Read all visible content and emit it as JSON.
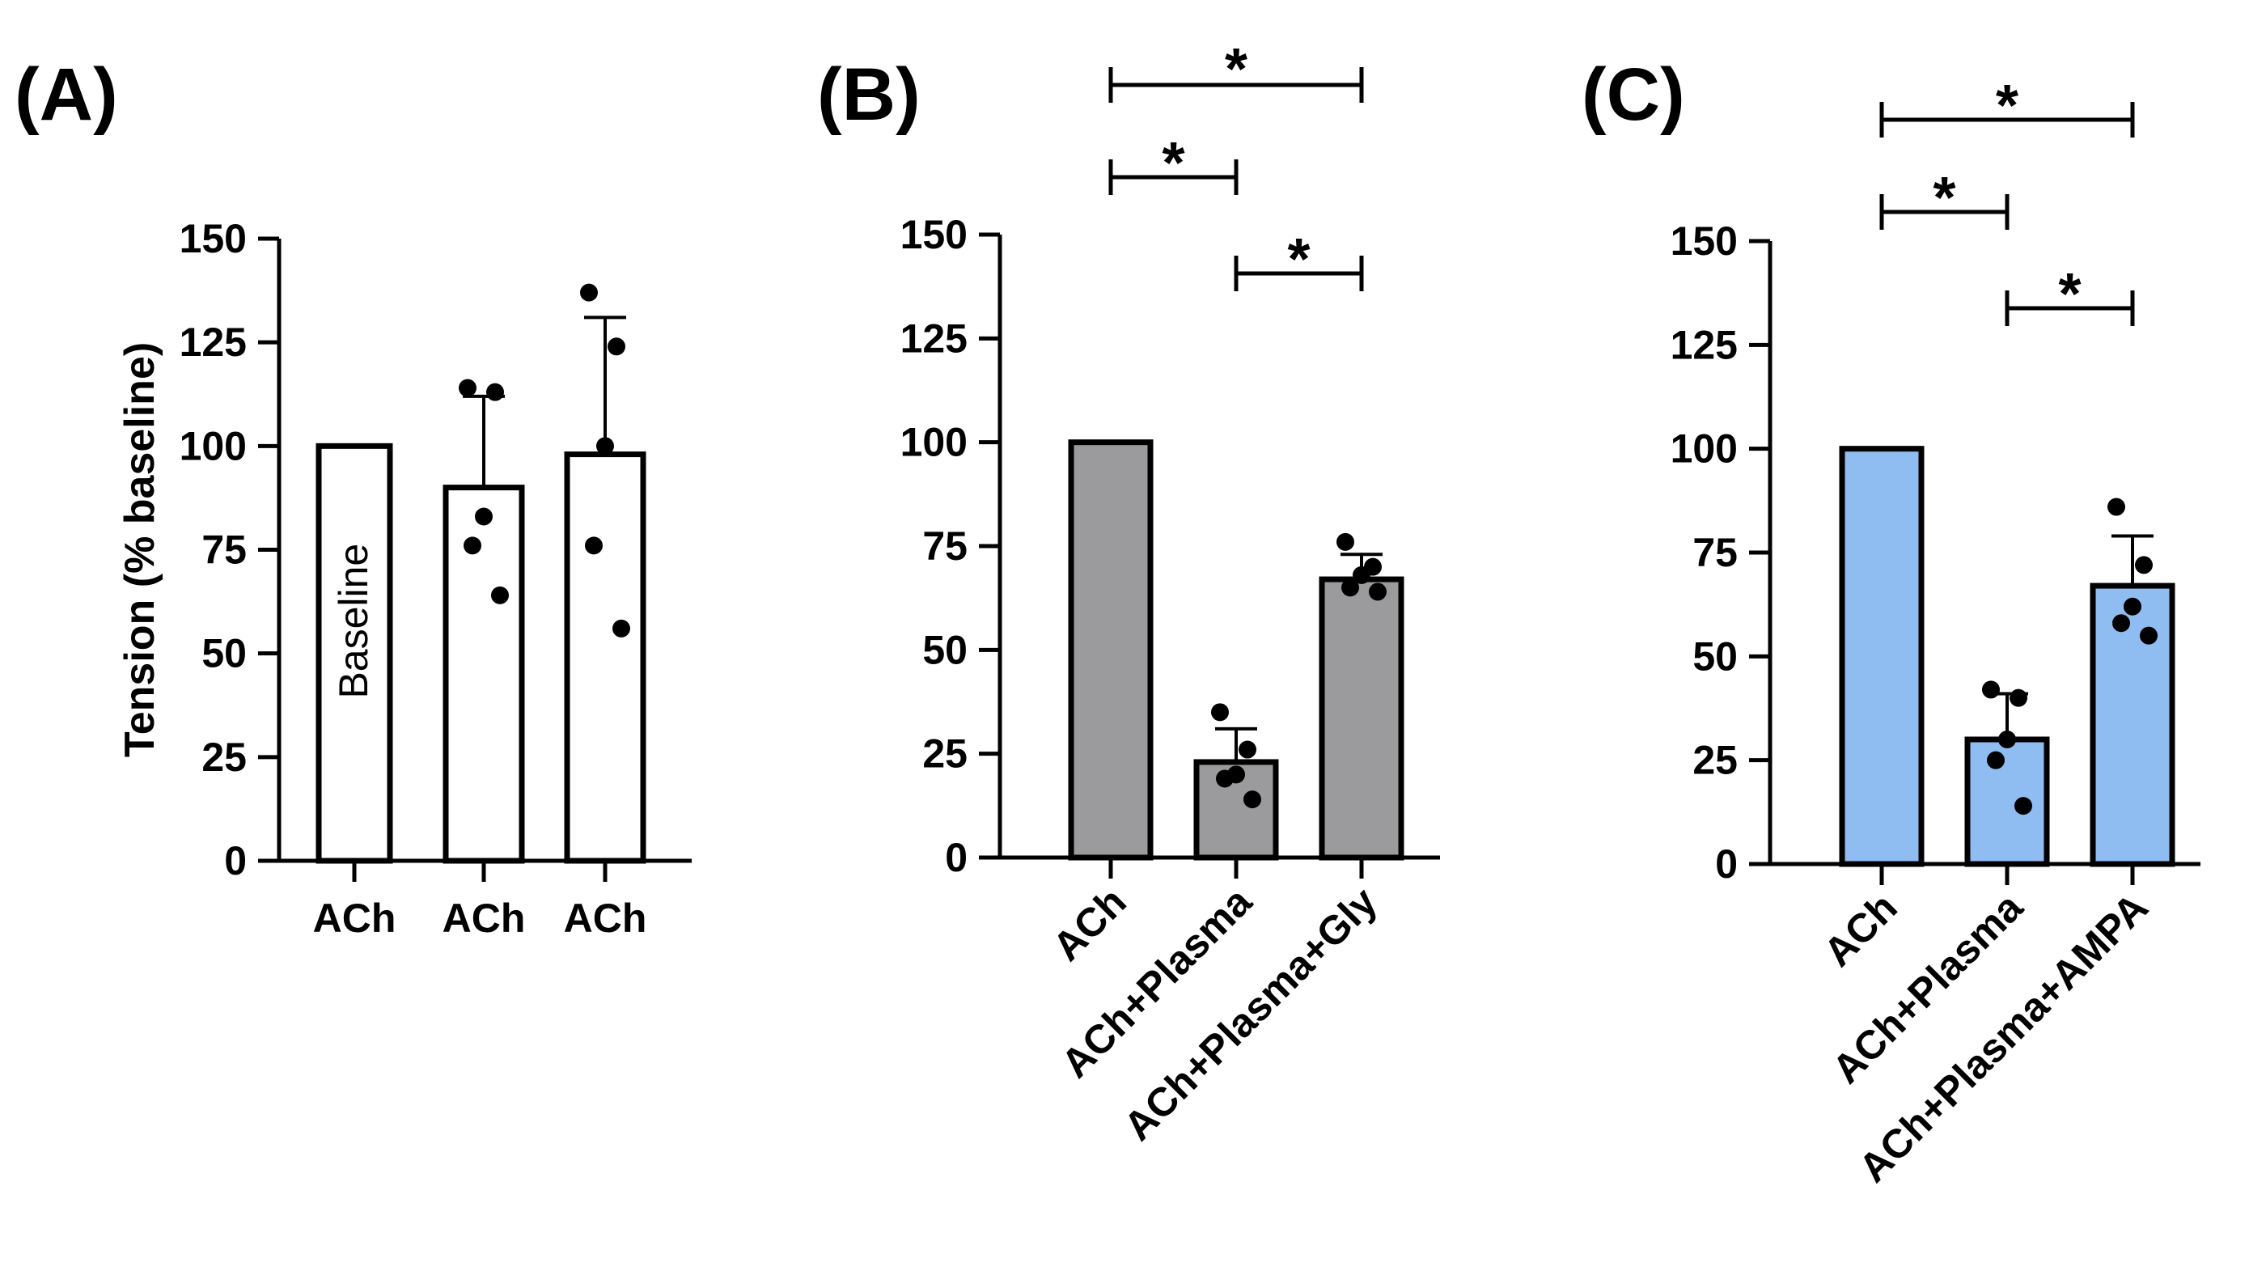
{
  "chart_data": [
    {
      "panel": "(A)",
      "type": "bar",
      "categories": [
        "ACh",
        "ACh",
        "ACh"
      ],
      "values": [
        100,
        90,
        98
      ],
      "error_upper": [
        null,
        112,
        131
      ],
      "points": [
        [],
        [
          114,
          113,
          83,
          76,
          64
        ],
        [
          137,
          124,
          100,
          76,
          56
        ]
      ],
      "bar_text": [
        "Baseline",
        "",
        ""
      ],
      "ylabel": "Tension (% baseline)",
      "yticks": [
        0,
        25,
        50,
        75,
        100,
        125,
        150
      ],
      "ylim": [
        0,
        150
      ],
      "bar_color": "#ffffff",
      "significance": []
    },
    {
      "panel": "(B)",
      "type": "bar",
      "categories": [
        "ACh",
        "ACh+Plasma",
        "ACh+Plasma+Gly"
      ],
      "values": [
        100,
        23,
        67
      ],
      "error_upper": [
        null,
        31,
        73
      ],
      "points": [
        [],
        [
          35,
          26,
          20,
          19,
          14
        ],
        [
          76,
          70,
          68,
          65,
          64
        ]
      ],
      "bar_text": [
        "",
        "",
        ""
      ],
      "ylabel": "",
      "yticks": [
        0,
        25,
        50,
        75,
        100,
        125,
        150
      ],
      "ylim": [
        0,
        150
      ],
      "bar_color": "#9b9b9e",
      "significance": [
        {
          "from": 0,
          "to": 2,
          "label": "*"
        },
        {
          "from": 0,
          "to": 1,
          "label": "*"
        },
        {
          "from": 1,
          "to": 2,
          "label": "*"
        }
      ]
    },
    {
      "panel": "(C)",
      "type": "bar",
      "categories": [
        "ACh",
        "ACh+Plasma",
        "ACh+Plasma+AMPA"
      ],
      "values": [
        100,
        30,
        67
      ],
      "error_upper": [
        null,
        41,
        79
      ],
      "points": [
        [],
        [
          42,
          40,
          30,
          25,
          14
        ],
        [
          86,
          72,
          62,
          58,
          55
        ]
      ],
      "bar_text": [
        "",
        "",
        ""
      ],
      "ylabel": "",
      "yticks": [
        0,
        25,
        50,
        75,
        100,
        125,
        150
      ],
      "ylim": [
        0,
        150
      ],
      "bar_color": "#8fbcf1",
      "significance": [
        {
          "from": 0,
          "to": 2,
          "label": "*"
        },
        {
          "from": 0,
          "to": 1,
          "label": "*"
        },
        {
          "from": 1,
          "to": 2,
          "label": "*"
        }
      ]
    }
  ]
}
